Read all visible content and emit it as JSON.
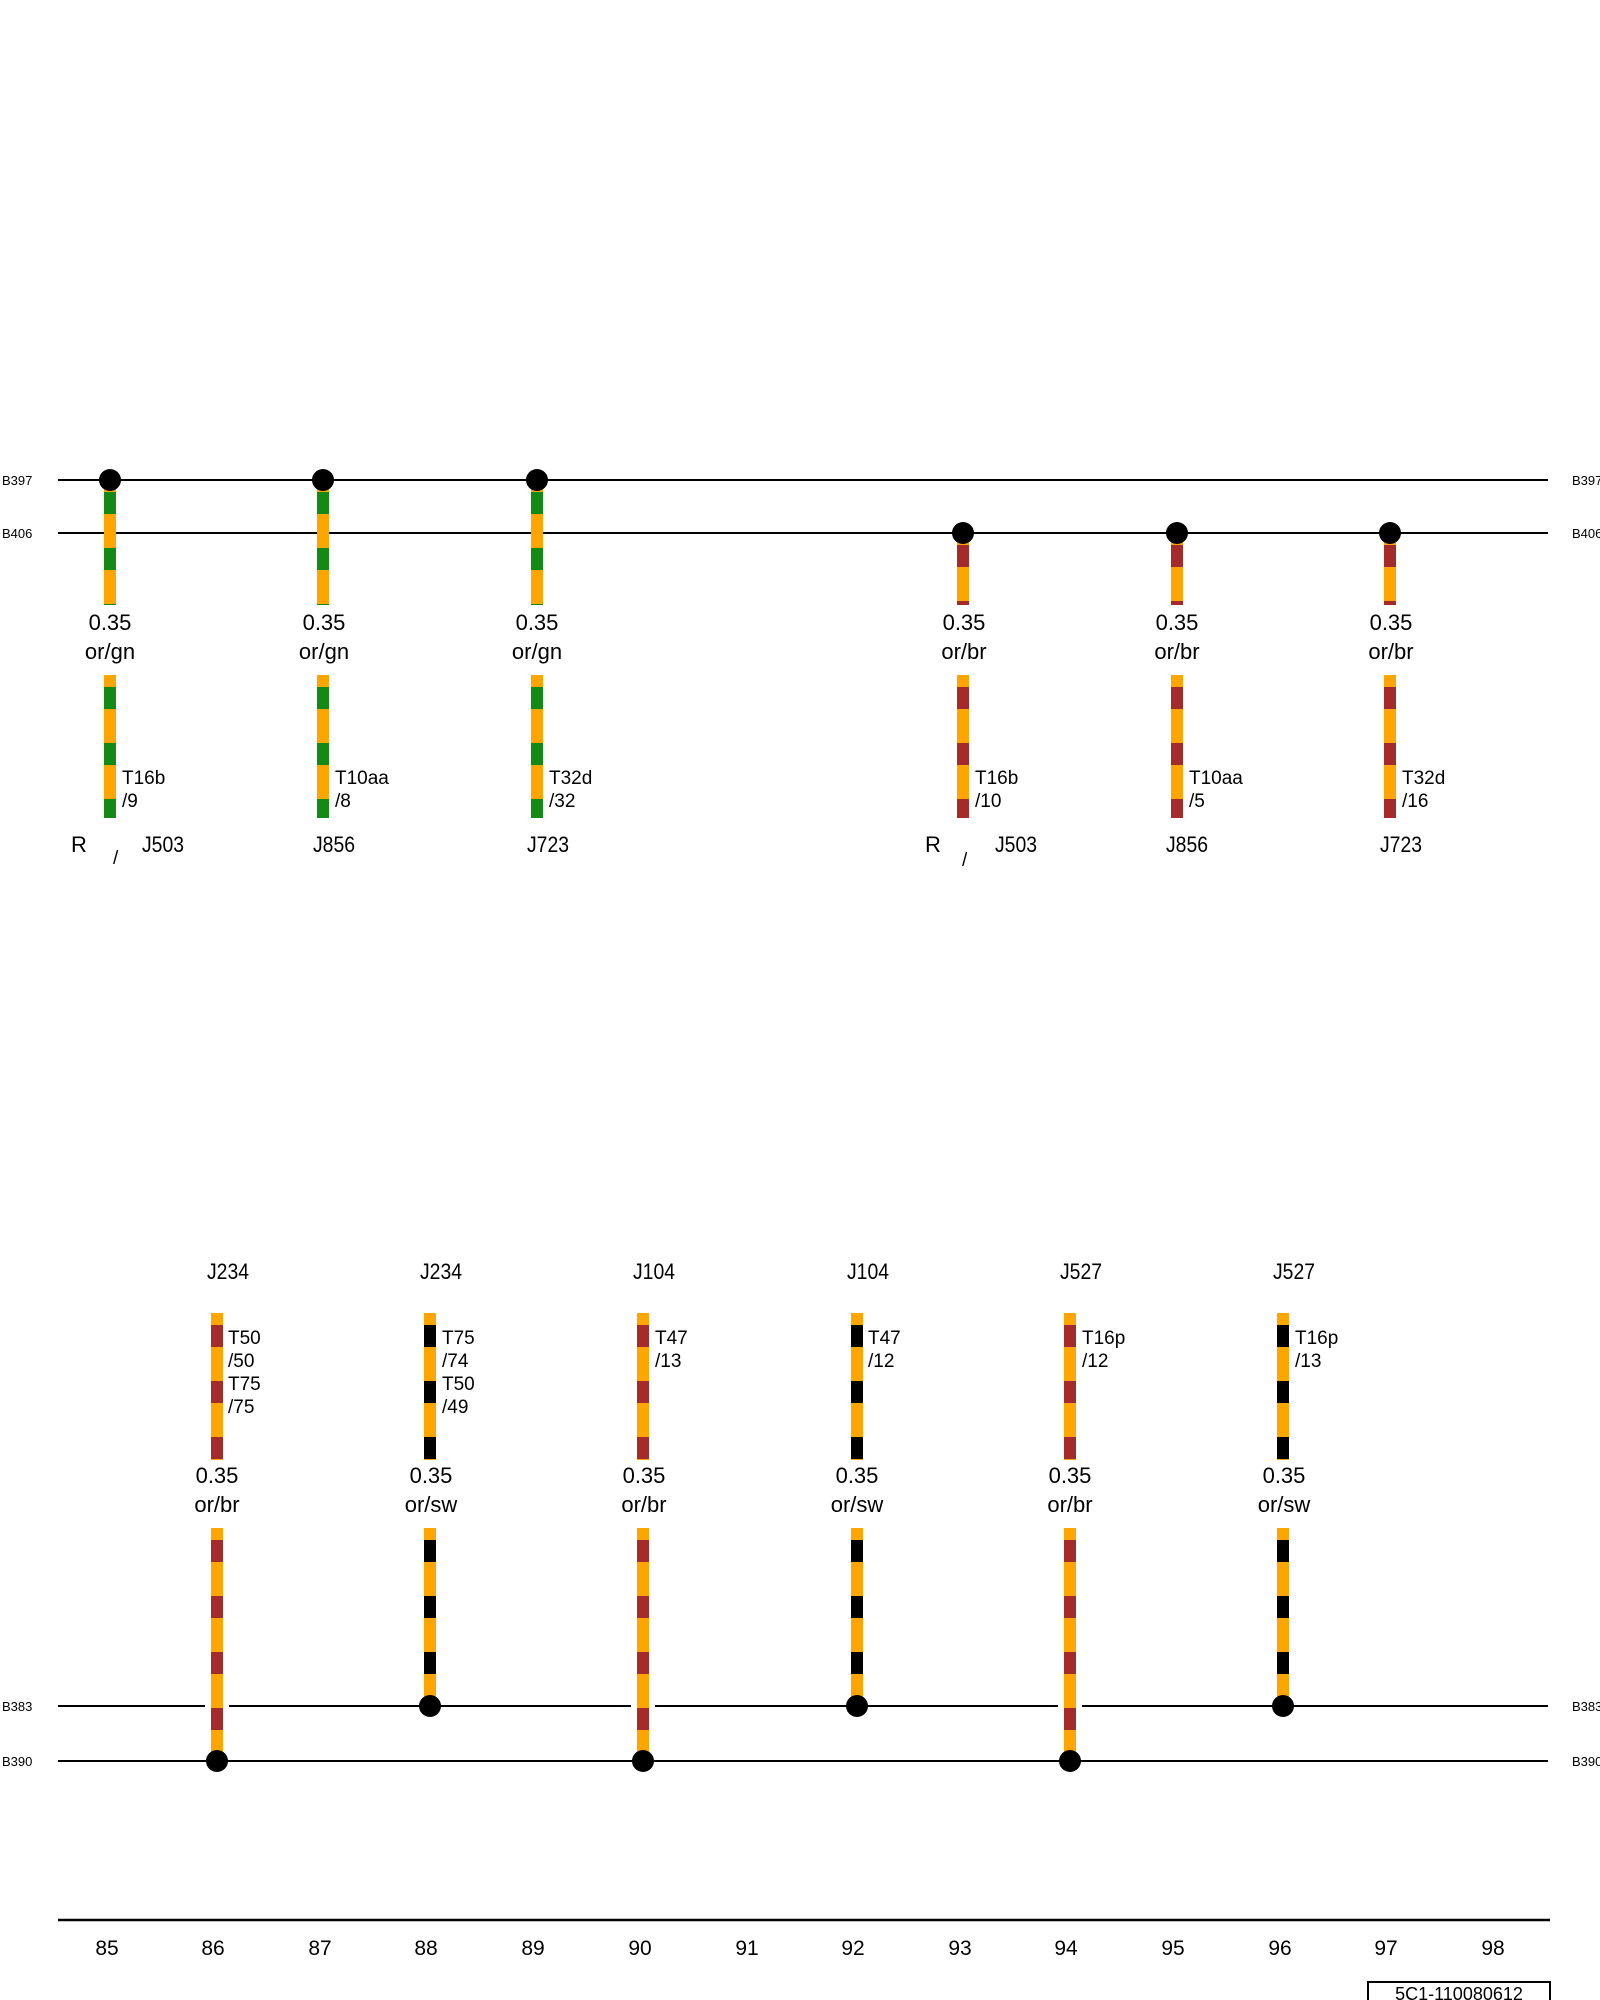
{
  "colors": {
    "or": "#FFA500",
    "gn": "#138A13",
    "br": "#A52A2A",
    "sw": "#000000",
    "line": "#000000"
  },
  "buses": [
    {
      "left": "B397",
      "right": "B397"
    },
    {
      "left": "B406",
      "right": "B406"
    },
    {
      "left": "B383",
      "right": "B383"
    },
    {
      "left": "B390",
      "right": "B390"
    }
  ],
  "top_wires": [
    {
      "bus": 0,
      "gauge": "0.35",
      "color": "or/gn",
      "conn": [
        "T16b",
        "/9"
      ],
      "comp": {
        "pre": "R",
        "slash": "/",
        "name": "J503"
      }
    },
    {
      "bus": 0,
      "gauge": "0.35",
      "color": "or/gn",
      "conn": [
        "T10aa",
        "/8"
      ],
      "comp": {
        "name": "J856"
      }
    },
    {
      "bus": 0,
      "gauge": "0.35",
      "color": "or/gn",
      "conn": [
        "T32d",
        "/32"
      ],
      "comp": {
        "name": "J723"
      }
    },
    {
      "bus": 1,
      "gauge": "0.35",
      "color": "or/br",
      "conn": [
        "T16b",
        "/10"
      ],
      "comp": {
        "pre": "R",
        "slash": "/",
        "name": "J503"
      }
    },
    {
      "bus": 1,
      "gauge": "0.35",
      "color": "or/br",
      "conn": [
        "T10aa",
        "/5"
      ],
      "comp": {
        "name": "J856"
      }
    },
    {
      "bus": 1,
      "gauge": "0.35",
      "color": "or/br",
      "conn": [
        "T32d",
        "/16"
      ],
      "comp": {
        "name": "J723"
      }
    }
  ],
  "bottom_wires": [
    {
      "bus": 3,
      "gauge": "0.35",
      "color": "or/br",
      "conn": [
        "T50",
        "/50",
        "T75",
        "/75"
      ],
      "comp": {
        "name": "J234"
      }
    },
    {
      "bus": 2,
      "gauge": "0.35",
      "color": "or/sw",
      "conn": [
        "T75",
        "/74",
        "T50",
        "/49"
      ],
      "comp": {
        "name": "J234"
      }
    },
    {
      "bus": 3,
      "gauge": "0.35",
      "color": "or/br",
      "conn": [
        "T47",
        "/13"
      ],
      "comp": {
        "name": "J104"
      }
    },
    {
      "bus": 2,
      "gauge": "0.35",
      "color": "or/sw",
      "conn": [
        "T47",
        "/12"
      ],
      "comp": {
        "name": "J104"
      }
    },
    {
      "bus": 3,
      "gauge": "0.35",
      "color": "or/br",
      "conn": [
        "T16p",
        "/12"
      ],
      "comp": {
        "name": "J527"
      }
    },
    {
      "bus": 2,
      "gauge": "0.35",
      "color": "or/sw",
      "conn": [
        "T16p",
        "/13"
      ],
      "comp": {
        "name": "J527"
      }
    }
  ],
  "scale": [
    "85",
    "86",
    "87",
    "88",
    "89",
    "90",
    "91",
    "92",
    "93",
    "94",
    "95",
    "96",
    "97",
    "98"
  ],
  "reference": "5C1-110080612"
}
